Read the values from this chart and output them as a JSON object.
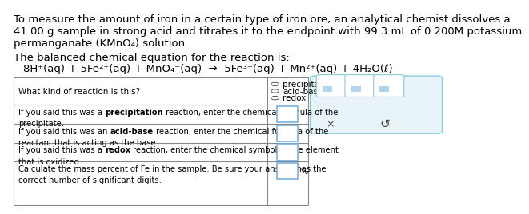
{
  "bg_color": "#ffffff",
  "title_line1": "To measure the amount of iron in a certain type of iron ore, an analytical chemist dissolves a",
  "title_line2": "41.00 g sample in strong acid and titrates it to the endpoint with 99.3 mL of 0.200M potassium",
  "title_line3": "permanganate (KMnO₄) solution.",
  "subtitle": "The balanced chemical equation for the reaction is:",
  "equation": "8H⁺(aq) + 5Fe²⁺(aq) + MnO₄⁻(aq)  →  5Fe³⁺(aq) + Mn²⁺(aq) + 4H₂O(ℓ)",
  "font_color": "#000000",
  "font_size_main": 9.5,
  "bg_color_panel": "#e8f4f8",
  "border_panel": "#88ccdd",
  "input_border": "#6aace0",
  "table_border": "#888888",
  "row0_question": "What kind of reaction is this?",
  "radio_options": [
    "precipitation",
    "acid-base",
    "redox"
  ],
  "row1_pre": "If you said this was a ",
  "row1_bold": "precipitation",
  "row1_post": " reaction, enter the chemical formula of the",
  "row1_post2": "precipitate.",
  "row2_pre": "If you said this was an ",
  "row2_bold": "acid-base",
  "row2_post": " reaction, enter the chemical formula of the",
  "row2_post2": "reactant that is acting as the base.",
  "row3_pre": "If you said this was a ",
  "row3_bold": "redox",
  "row3_post": " reaction, enter the chemical symbol of the element",
  "row3_post2": "that is oxidized.",
  "row4_line1": "Calculate the mass percent of Fe in the sample. Be sure your answer has the",
  "row4_line2": "correct number of significant digits."
}
